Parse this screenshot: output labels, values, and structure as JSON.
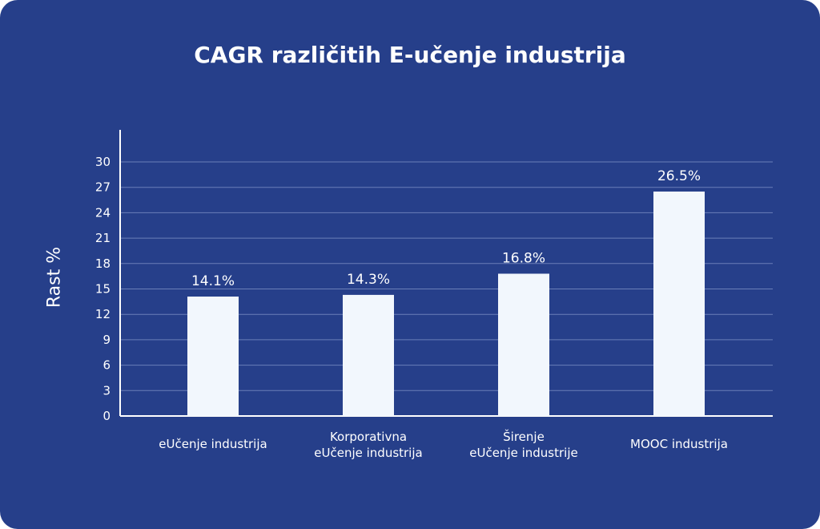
{
  "chart_data": {
    "type": "bar",
    "title": "CAGR različitih E-učenje industrija",
    "ylabel": "Rast %",
    "xlabel": "",
    "ylim": [
      0,
      30
    ],
    "yticks": [
      0,
      3,
      6,
      9,
      12,
      15,
      18,
      21,
      24,
      27,
      30
    ],
    "grid": true,
    "categories": [
      [
        "eUčenje industrija"
      ],
      [
        "Korporativna",
        "eUčenje industrija"
      ],
      [
        "Širenje",
        "eUčenje industrije"
      ],
      [
        "MOOC industrija"
      ]
    ],
    "values": [
      14.1,
      14.3,
      16.8,
      26.5
    ],
    "value_labels": [
      "14.1%",
      "14.3%",
      "16.8%",
      "26.5%"
    ]
  },
  "colors": {
    "background": "#263f8a",
    "bar": "#f2f7fd",
    "grid": "#6a7fb8",
    "axis": "#ffffff",
    "text": "#ffffff"
  }
}
